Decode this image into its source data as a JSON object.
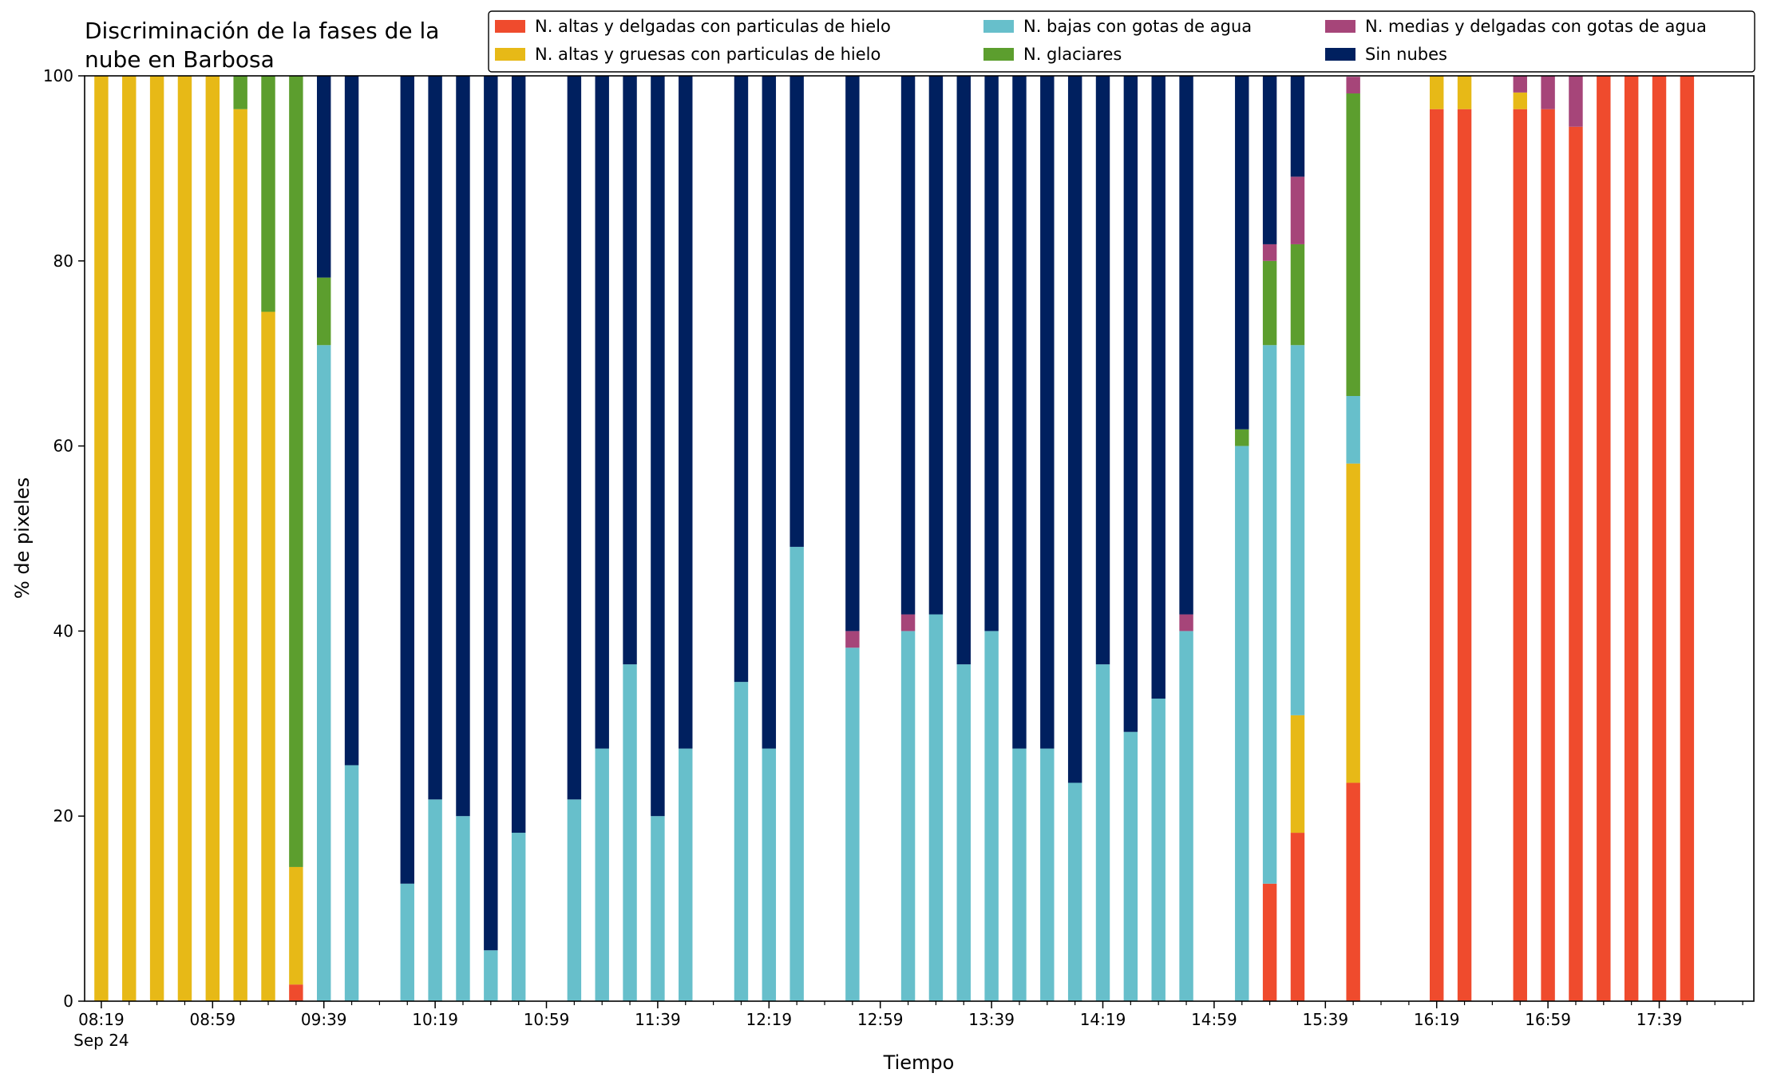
{
  "chart_data": {
    "type": "bar",
    "stacked": true,
    "title": "Discriminación de la fases de la nube en Barbosa",
    "title_lines": [
      "Discriminación de la fases de la",
      "nube en Barbosa"
    ],
    "xlabel": "Tiempo",
    "ylabel": "% de pixeles",
    "ylim": [
      0,
      100
    ],
    "yticks": [
      0,
      20,
      40,
      60,
      80,
      100
    ],
    "xlim": [
      0,
      59.4
    ],
    "x_date_label": "Sep 24",
    "xticks": [
      {
        "x": 0,
        "label": "08:19"
      },
      {
        "x": 4,
        "label": "08:59"
      },
      {
        "x": 8,
        "label": "09:39"
      },
      {
        "x": 12,
        "label": "10:19"
      },
      {
        "x": 16,
        "label": "10:59"
      },
      {
        "x": 20,
        "label": "11:39"
      },
      {
        "x": 24,
        "label": "12:19"
      },
      {
        "x": 28,
        "label": "12:59"
      },
      {
        "x": 32,
        "label": "13:39"
      },
      {
        "x": 36,
        "label": "14:19"
      },
      {
        "x": 40,
        "label": "14:59"
      },
      {
        "x": 44,
        "label": "15:39"
      },
      {
        "x": 48,
        "label": "16:19"
      },
      {
        "x": 52,
        "label": "16:59"
      },
      {
        "x": 56,
        "label": "17:39"
      }
    ],
    "legend_position": "top-right",
    "series": [
      {
        "name": "N. altas y delgadas con particulas de hielo",
        "color": "#ef4b2d"
      },
      {
        "name": "N. altas y gruesas con particulas de hielo",
        "color": "#e7b917"
      },
      {
        "name": "N. bajas con gotas de agua",
        "color": "#67bfcb"
      },
      {
        "name": "N. glaciares",
        "color": "#5c9e2e"
      },
      {
        "name": "N. medias y delgadas con gotas de agua",
        "color": "#a64579"
      },
      {
        "name": "Sin nubes",
        "color": "#00205f"
      }
    ],
    "bars": [
      {
        "x": 0,
        "v": [
          0,
          100,
          0,
          0,
          0,
          0
        ]
      },
      {
        "x": 1,
        "v": [
          0,
          100,
          0,
          0,
          0,
          0
        ]
      },
      {
        "x": 2,
        "v": [
          0,
          100,
          0,
          0,
          0,
          0
        ]
      },
      {
        "x": 3,
        "v": [
          0,
          100,
          0,
          0,
          0,
          0
        ]
      },
      {
        "x": 4,
        "v": [
          0,
          100,
          0,
          0,
          0,
          0
        ]
      },
      {
        "x": 5,
        "v": [
          0,
          96.4,
          0,
          3.6,
          0,
          0
        ]
      },
      {
        "x": 6,
        "v": [
          0,
          74.5,
          0,
          25.5,
          0,
          0
        ]
      },
      {
        "x": 7,
        "v": [
          1.8,
          12.7,
          0,
          85.5,
          0,
          0
        ]
      },
      {
        "x": 8,
        "v": [
          0,
          0,
          70.9,
          7.3,
          0,
          21.8
        ]
      },
      {
        "x": 9,
        "v": [
          0,
          0,
          25.5,
          0,
          0,
          74.5
        ]
      },
      {
        "x": 11,
        "v": [
          0,
          0,
          12.7,
          0,
          0,
          87.3
        ]
      },
      {
        "x": 12,
        "v": [
          0,
          0,
          21.8,
          0,
          0,
          78.2
        ]
      },
      {
        "x": 13,
        "v": [
          0,
          0,
          20,
          0,
          0,
          80
        ]
      },
      {
        "x": 14,
        "v": [
          0,
          0,
          5.5,
          0,
          0,
          94.5
        ]
      },
      {
        "x": 15,
        "v": [
          0,
          0,
          18.2,
          0,
          0,
          81.8
        ]
      },
      {
        "x": 17,
        "v": [
          0,
          0,
          21.8,
          0,
          0,
          78.2
        ]
      },
      {
        "x": 18,
        "v": [
          0,
          0,
          27.3,
          0,
          0,
          72.7
        ]
      },
      {
        "x": 19,
        "v": [
          0,
          0,
          36.4,
          0,
          0,
          63.6
        ]
      },
      {
        "x": 20,
        "v": [
          0,
          0,
          20,
          0,
          0,
          80
        ]
      },
      {
        "x": 21,
        "v": [
          0,
          0,
          27.3,
          0,
          0,
          72.7
        ]
      },
      {
        "x": 23,
        "v": [
          0,
          0,
          34.5,
          0,
          0,
          65.5
        ]
      },
      {
        "x": 24,
        "v": [
          0,
          0,
          27.3,
          0,
          0,
          72.7
        ]
      },
      {
        "x": 25,
        "v": [
          0,
          0,
          49.1,
          0,
          0,
          50.9
        ]
      },
      {
        "x": 27,
        "v": [
          0,
          0,
          38.2,
          0,
          1.8,
          60
        ]
      },
      {
        "x": 29,
        "v": [
          0,
          0,
          40,
          0,
          1.8,
          58.2
        ]
      },
      {
        "x": 30,
        "v": [
          0,
          0,
          41.8,
          0,
          0,
          58.2
        ]
      },
      {
        "x": 31,
        "v": [
          0,
          0,
          36.4,
          0,
          0,
          63.6
        ]
      },
      {
        "x": 32,
        "v": [
          0,
          0,
          40,
          0,
          0,
          60
        ]
      },
      {
        "x": 33,
        "v": [
          0,
          0,
          27.3,
          0,
          0,
          72.7
        ]
      },
      {
        "x": 34,
        "v": [
          0,
          0,
          27.3,
          0,
          0,
          72.7
        ]
      },
      {
        "x": 35,
        "v": [
          0,
          0,
          23.6,
          0,
          0,
          76.4
        ]
      },
      {
        "x": 36,
        "v": [
          0,
          0,
          36.4,
          0,
          0,
          63.6
        ]
      },
      {
        "x": 37,
        "v": [
          0,
          0,
          29.1,
          0,
          0,
          70.9
        ]
      },
      {
        "x": 38,
        "v": [
          0,
          0,
          32.7,
          0,
          0,
          67.3
        ]
      },
      {
        "x": 39,
        "v": [
          0,
          0,
          40,
          0,
          1.8,
          58.2
        ]
      },
      {
        "x": 41,
        "v": [
          0,
          0,
          60,
          1.8,
          0,
          38.2
        ]
      },
      {
        "x": 42,
        "v": [
          12.7,
          0,
          58.2,
          9.1,
          1.8,
          18.2
        ]
      },
      {
        "x": 43,
        "v": [
          18.2,
          12.7,
          40,
          10.9,
          7.3,
          10.9
        ]
      },
      {
        "x": 45,
        "v": [
          23.6,
          34.5,
          7.3,
          32.7,
          1.8,
          0
        ]
      },
      {
        "x": 48,
        "v": [
          96.4,
          3.6,
          0,
          0,
          0,
          0
        ]
      },
      {
        "x": 49,
        "v": [
          96.4,
          3.6,
          0,
          0,
          0,
          0
        ]
      },
      {
        "x": 51,
        "v": [
          96.4,
          1.8,
          0,
          0,
          1.8,
          0
        ]
      },
      {
        "x": 52,
        "v": [
          96.4,
          0,
          0,
          0,
          3.6,
          0
        ]
      },
      {
        "x": 53,
        "v": [
          94.5,
          0,
          0,
          0,
          5.5,
          0
        ]
      },
      {
        "x": 54,
        "v": [
          100,
          0,
          0,
          0,
          0,
          0
        ]
      },
      {
        "x": 55,
        "v": [
          100,
          0,
          0,
          0,
          0,
          0
        ]
      },
      {
        "x": 56,
        "v": [
          100,
          0,
          0,
          0,
          0,
          0
        ]
      },
      {
        "x": 57,
        "v": [
          100,
          0,
          0,
          0,
          0,
          0
        ]
      }
    ]
  }
}
